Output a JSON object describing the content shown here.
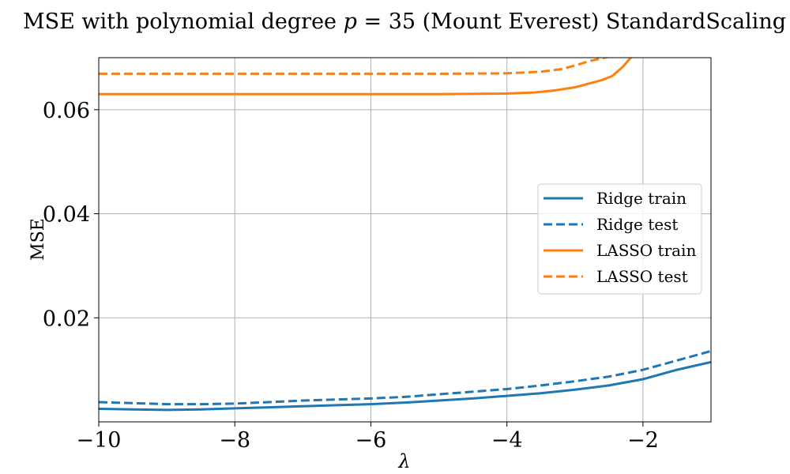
{
  "chart_data": {
    "type": "line",
    "title": "MSE with polynomial degree p = 35 (Mount Everest) StandardScaling",
    "title_parts": {
      "prefix": "MSE with polynomial degree ",
      "var": "p",
      "equals": " = 35 (Mount Everest) StandardScaling"
    },
    "xlabel": "λ",
    "ylabel": "MSE",
    "xlim": [
      -10,
      -1
    ],
    "ylim": [
      0.0,
      0.07
    ],
    "xticks": [
      -10,
      -8,
      -6,
      -4,
      -2
    ],
    "xtick_labels": [
      "−10",
      "−8",
      "−6",
      "−4",
      "−2"
    ],
    "yticks": [
      0.02,
      0.04,
      0.06
    ],
    "ytick_labels": [
      "0.02",
      "0.04",
      "0.06"
    ],
    "grid": true,
    "legend_position": "center-right",
    "series": [
      {
        "name": "Ridge train",
        "color": "#1f77b4",
        "style": "solid",
        "x": [
          -10,
          -9.5,
          -9,
          -8.5,
          -8,
          -7.5,
          -7,
          -6.5,
          -6,
          -5.5,
          -5,
          -4.5,
          -4,
          -3.5,
          -3,
          -2.5,
          -2,
          -1.5,
          -1
        ],
        "y": [
          0.0025,
          0.0024,
          0.0023,
          0.0024,
          0.0026,
          0.0028,
          0.003,
          0.0032,
          0.0034,
          0.0037,
          0.0041,
          0.0045,
          0.005,
          0.0055,
          0.0062,
          0.007,
          0.0082,
          0.01,
          0.0115
        ]
      },
      {
        "name": "Ridge test",
        "color": "#1f77b4",
        "style": "dashed",
        "x": [
          -10,
          -9.5,
          -9,
          -8.5,
          -8,
          -7.5,
          -7,
          -6.5,
          -6,
          -5.5,
          -5,
          -4.5,
          -4,
          -3.5,
          -3,
          -2.5,
          -2,
          -1.5,
          -1
        ],
        "y": [
          0.0038,
          0.0036,
          0.0034,
          0.0034,
          0.0035,
          0.0038,
          0.0041,
          0.0043,
          0.0045,
          0.0048,
          0.0053,
          0.0058,
          0.0063,
          0.007,
          0.0078,
          0.0087,
          0.01,
          0.0118,
          0.0136
        ]
      },
      {
        "name": "LASSO train",
        "color": "#ff7f0e",
        "style": "solid",
        "x": [
          -10,
          -9,
          -8,
          -7,
          -6,
          -5,
          -4,
          -3.6,
          -3.3,
          -3.0,
          -2.8,
          -2.6,
          -2.45,
          -2.3,
          -2.2,
          -2.15
        ],
        "y": [
          0.063,
          0.063,
          0.063,
          0.063,
          0.063,
          0.063,
          0.0631,
          0.0633,
          0.0637,
          0.0643,
          0.065,
          0.0657,
          0.0665,
          0.0682,
          0.0697,
          0.0705
        ]
      },
      {
        "name": "LASSO test",
        "color": "#ff7f0e",
        "style": "dashed",
        "x": [
          -10,
          -9,
          -8,
          -7,
          -6,
          -5,
          -4,
          -3.5,
          -3.2,
          -3.0,
          -2.8,
          -2.6,
          -2.45,
          -2.35
        ],
        "y": [
          0.0669,
          0.0669,
          0.0669,
          0.0669,
          0.0669,
          0.0669,
          0.067,
          0.0673,
          0.0678,
          0.0685,
          0.0693,
          0.0699,
          0.0703,
          0.0705
        ]
      }
    ]
  }
}
